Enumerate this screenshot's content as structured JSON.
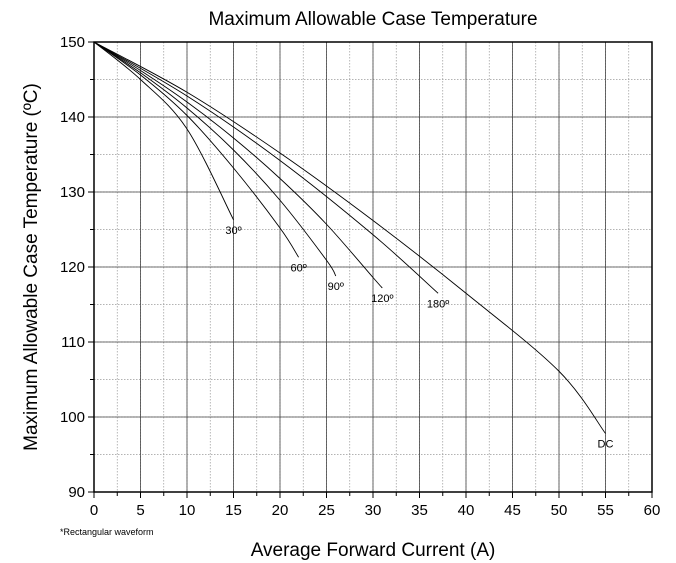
{
  "chart_data": {
    "type": "line",
    "title": "Maximum Allowable Case Temperature",
    "xlabel": "Average Forward Current (A)",
    "ylabel": "Maximum Allowable Case Temperature (ºC)",
    "xlim": [
      0,
      60
    ],
    "ylim": [
      90,
      150
    ],
    "x_ticks": [
      0,
      5,
      10,
      15,
      20,
      25,
      30,
      35,
      40,
      45,
      50,
      55,
      60
    ],
    "y_ticks": [
      90,
      100,
      110,
      120,
      130,
      140,
      150
    ],
    "grid": true,
    "note": "*Rectangular waveform",
    "series": [
      {
        "name": "30º",
        "x": [
          0,
          5,
          10,
          15
        ],
        "y": [
          150,
          145,
          138.4,
          126.3
        ]
      },
      {
        "name": "60º",
        "x": [
          0,
          5,
          10,
          15,
          20,
          22
        ],
        "y": [
          150,
          145.6,
          140.2,
          133.2,
          125.2,
          121.3
        ]
      },
      {
        "name": "90º",
        "x": [
          0,
          5,
          10,
          15,
          20,
          25,
          26
        ],
        "y": [
          150,
          145.9,
          141.2,
          135.6,
          128.9,
          120.9,
          118.8
        ]
      },
      {
        "name": "120º",
        "x": [
          0,
          5,
          10,
          15,
          20,
          25,
          30,
          31
        ],
        "y": [
          150,
          146.2,
          142,
          137.2,
          131.8,
          125.7,
          118.6,
          117.2
        ]
      },
      {
        "name": "180º",
        "x": [
          0,
          10,
          20,
          30,
          37
        ],
        "y": [
          150,
          142.8,
          134.2,
          124.3,
          116.5
        ]
      },
      {
        "name": "DC",
        "x": [
          0,
          10,
          20,
          30,
          40,
          50,
          55
        ],
        "y": [
          150,
          143.3,
          135.2,
          126.2,
          116.5,
          106.1,
          97.8
        ]
      }
    ]
  }
}
